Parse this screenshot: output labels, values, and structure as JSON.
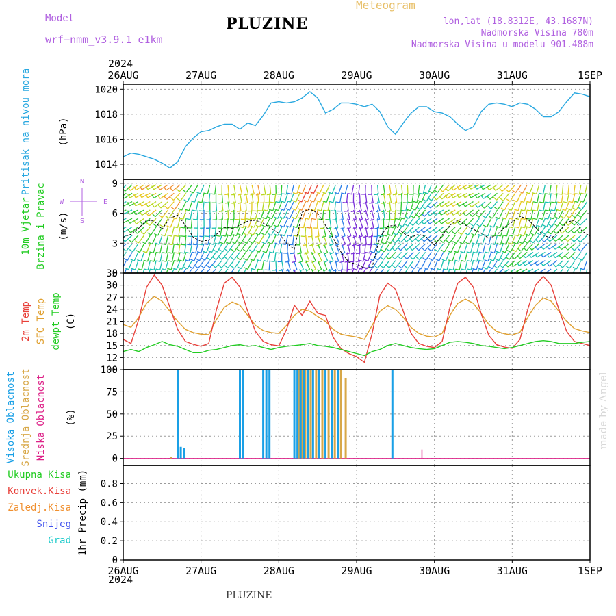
{
  "header": {
    "model_label": "Model",
    "model_name": "wrf−nmm_v3.9.1  e1km",
    "station": "PLUZINE",
    "product": "Meteogram",
    "lonlat": "lon,lat (18.8312E, 43.1687N)",
    "elevation": "Nadmorska Visina 780m",
    "model_elevation": "Nadmorska Visina u modelu 901.488m",
    "credit": "made by Angel",
    "footer": "PLUZINE",
    "year_top": "2024",
    "year_bottom": "2024"
  },
  "colors": {
    "pressure": "#29a8e0",
    "temp2m": "#e8403a",
    "sfc_temp": "#e0a030",
    "dewpt": "#22cc22",
    "high_cloud": "#1aa0e6",
    "mid_cloud": "#d8a848",
    "low_cloud": "#dd2288",
    "wind_speed": "#000000",
    "purple_text": "#b060e0",
    "gold_text": "#e8c06a"
  },
  "time_axis": {
    "labels": [
      "26AUG",
      "27AUG",
      "28AUG",
      "29AUG",
      "30AUG",
      "31AUG",
      "1SEP"
    ]
  },
  "compass": [
    "N",
    "W",
    "E",
    "S"
  ],
  "chart_data": [
    {
      "type": "line",
      "panel": "pressure",
      "ylabel_lines": [
        "Pritisak na nivou mora",
        "(hPa)"
      ],
      "ylim": [
        1012.8,
        1020.4
      ],
      "yticks": [
        1014,
        1016,
        1018,
        1020
      ],
      "x_unit": "days since 26AUG 00UTC",
      "grid": true,
      "series": [
        {
          "name": "Pritisak na nivou mora",
          "x": [
            0,
            0.1,
            0.2,
            0.3,
            0.4,
            0.5,
            0.6,
            0.7,
            0.8,
            0.9,
            1.0,
            1.1,
            1.2,
            1.3,
            1.4,
            1.5,
            1.6,
            1.7,
            1.8,
            1.9,
            2.0,
            2.1,
            2.2,
            2.3,
            2.4,
            2.5,
            2.6,
            2.7,
            2.8,
            2.9,
            3.0,
            3.1,
            3.2,
            3.3,
            3.4,
            3.5,
            3.6,
            3.7,
            3.8,
            3.9,
            4.0,
            4.1,
            4.2,
            4.3,
            4.4,
            4.5,
            4.6,
            4.7,
            4.8,
            4.9,
            5.0,
            5.1,
            5.2,
            5.3,
            5.4,
            5.5,
            5.6,
            5.7,
            5.8,
            5.9,
            6.0
          ],
          "values": [
            1014.6,
            1014.9,
            1014.8,
            1014.6,
            1014.4,
            1014.1,
            1013.7,
            1014.2,
            1015.4,
            1016.1,
            1016.6,
            1016.7,
            1017.0,
            1017.2,
            1017.2,
            1016.8,
            1017.3,
            1017.1,
            1017.9,
            1018.9,
            1019.0,
            1018.9,
            1019.0,
            1019.3,
            1019.8,
            1019.3,
            1018.1,
            1018.4,
            1018.9,
            1018.9,
            1018.8,
            1018.6,
            1018.8,
            1018.2,
            1017.0,
            1016.4,
            1017.3,
            1018.1,
            1018.6,
            1018.6,
            1018.2,
            1018.1,
            1017.8,
            1017.2,
            1016.7,
            1017.0,
            1018.2,
            1018.8,
            1018.9,
            1018.8,
            1018.6,
            1018.9,
            1018.8,
            1018.4,
            1017.8,
            1017.8,
            1018.2,
            1019.0,
            1019.7,
            1019.6,
            1019.4
          ]
        }
      ]
    },
    {
      "type": "line",
      "panel": "wind",
      "ylabel_lines": [
        "10m Vjetar",
        "Brzina i Pravac",
        "(m/s)"
      ],
      "ylim": [
        0,
        9.4
      ],
      "yticks": [
        0,
        3,
        6,
        9
      ],
      "grid": true,
      "series": [
        {
          "name": "10m wind speed",
          "x": [
            0,
            0.1,
            0.2,
            0.3,
            0.4,
            0.5,
            0.6,
            0.7,
            0.8,
            0.9,
            1.0,
            1.1,
            1.2,
            1.3,
            1.4,
            1.5,
            1.6,
            1.7,
            1.8,
            1.9,
            2.0,
            2.1,
            2.2,
            2.3,
            2.4,
            2.5,
            2.6,
            2.7,
            2.8,
            2.9,
            3.0,
            3.1,
            3.2,
            3.3,
            3.4,
            3.5,
            3.6,
            3.7,
            3.8,
            3.9,
            4.0,
            4.1,
            4.2,
            4.3,
            4.4,
            4.5,
            4.6,
            4.7,
            4.8,
            4.9,
            5.0,
            5.1,
            5.2,
            5.3,
            5.4,
            5.5,
            5.6,
            5.7,
            5.8,
            5.9,
            6.0
          ],
          "values": [
            3.6,
            3.9,
            4.5,
            5.3,
            5.2,
            4.4,
            5.5,
            5.8,
            4.8,
            3.6,
            3.2,
            3.3,
            3.9,
            4.6,
            4.5,
            4.8,
            5.2,
            5.3,
            5.0,
            4.5,
            4.0,
            3.0,
            2.4,
            6.1,
            6.4,
            6.0,
            4.8,
            3.5,
            2.1,
            1.1,
            0.9,
            0.5,
            0.6,
            3.6,
            4.7,
            4.8,
            4.0,
            3.6,
            3.9,
            3.6,
            2.8,
            3.8,
            4.8,
            5.3,
            4.8,
            4.4,
            4.0,
            3.5,
            3.8,
            4.6,
            5.1,
            5.7,
            5.4,
            4.6,
            3.8,
            3.5,
            4.1,
            5.1,
            5.3,
            4.2,
            3.7
          ]
        }
      ]
    },
    {
      "type": "line",
      "panel": "temperature",
      "ylabel_lines": [
        "2m Temp",
        "SFC Temp",
        "dewpt Temp",
        "(C)"
      ],
      "ylim": [
        9,
        33
      ],
      "yticks": [
        9,
        12,
        15,
        18,
        21,
        24,
        27,
        30,
        33
      ],
      "grid": true,
      "series": [
        {
          "name": "2m Temp",
          "x": [
            0,
            0.1,
            0.2,
            0.3,
            0.4,
            0.5,
            0.6,
            0.7,
            0.8,
            0.9,
            1.0,
            1.1,
            1.2,
            1.3,
            1.4,
            1.5,
            1.6,
            1.7,
            1.8,
            1.9,
            2.0,
            2.1,
            2.2,
            2.3,
            2.4,
            2.5,
            2.6,
            2.7,
            2.8,
            2.9,
            3.0,
            3.1,
            3.2,
            3.3,
            3.4,
            3.5,
            3.6,
            3.7,
            3.8,
            3.9,
            4.0,
            4.1,
            4.2,
            4.3,
            4.4,
            4.5,
            4.6,
            4.7,
            4.8,
            4.9,
            5.0,
            5.1,
            5.2,
            5.3,
            5.4,
            5.5,
            5.6,
            5.7,
            5.8,
            5.9,
            6.0
          ],
          "values": [
            20.2,
            19.5,
            22.0,
            25.5,
            27.2,
            26.0,
            23.5,
            21.0,
            19.0,
            18.2,
            17.8,
            17.7,
            21.5,
            24.5,
            25.8,
            25.0,
            22.5,
            20.0,
            18.7,
            18.2,
            18.0,
            20.0,
            22.5,
            24.0,
            23.5,
            22.2,
            21.0,
            19.0,
            17.8,
            17.4,
            17.1,
            16.5,
            20.0,
            23.5,
            24.9,
            24.0,
            22.0,
            19.5,
            18.0,
            17.3,
            17.1,
            18.0,
            22.5,
            25.5,
            26.5,
            25.5,
            23.0,
            20.2,
            18.5,
            17.9,
            17.6,
            18.3,
            22.0,
            25.0,
            26.8,
            26.0,
            23.5,
            21.0,
            19.2,
            18.6,
            18.2
          ]
        },
        {
          "name": "SFC Temp",
          "x": [
            0,
            0.1,
            0.2,
            0.3,
            0.4,
            0.5,
            0.6,
            0.7,
            0.8,
            0.9,
            1.0,
            1.1,
            1.2,
            1.3,
            1.4,
            1.5,
            1.6,
            1.7,
            1.8,
            1.9,
            2.0,
            2.1,
            2.2,
            2.3,
            2.4,
            2.5,
            2.6,
            2.7,
            2.8,
            2.9,
            3.0,
            3.1,
            3.2,
            3.3,
            3.4,
            3.5,
            3.6,
            3.7,
            3.8,
            3.9,
            4.0,
            4.1,
            4.2,
            4.3,
            4.4,
            4.5,
            4.6,
            4.7,
            4.8,
            4.9,
            5.0,
            5.1,
            5.2,
            5.3,
            5.4,
            5.5,
            5.6,
            5.7,
            5.8,
            5.9,
            6.0
          ],
          "values": [
            16.5,
            15.5,
            21.5,
            29.5,
            32.5,
            30.0,
            24.5,
            19.0,
            16.0,
            15.3,
            14.8,
            15.5,
            24.0,
            30.5,
            32.0,
            29.5,
            23.5,
            18.5,
            16.0,
            15.2,
            14.9,
            19.0,
            25.0,
            22.5,
            26.0,
            23.0,
            22.5,
            17.0,
            14.2,
            13.0,
            12.2,
            10.8,
            18.0,
            27.5,
            30.5,
            29.0,
            23.5,
            18.0,
            15.5,
            14.8,
            14.5,
            16.0,
            24.5,
            30.5,
            32.0,
            29.5,
            23.0,
            17.5,
            15.2,
            14.6,
            14.3,
            16.5,
            24.0,
            30.0,
            32.2,
            30.0,
            24.0,
            18.5,
            16.0,
            15.5,
            15.0
          ]
        },
        {
          "name": "dewpt Temp",
          "x": [
            0,
            0.1,
            0.2,
            0.3,
            0.4,
            0.5,
            0.6,
            0.7,
            0.8,
            0.9,
            1.0,
            1.1,
            1.2,
            1.3,
            1.4,
            1.5,
            1.6,
            1.7,
            1.8,
            1.9,
            2.0,
            2.1,
            2.2,
            2.3,
            2.4,
            2.5,
            2.6,
            2.7,
            2.8,
            2.9,
            3.0,
            3.1,
            3.2,
            3.3,
            3.4,
            3.5,
            3.6,
            3.7,
            3.8,
            3.9,
            4.0,
            4.1,
            4.2,
            4.3,
            4.4,
            4.5,
            4.6,
            4.7,
            4.8,
            4.9,
            5.0,
            5.1,
            5.2,
            5.3,
            5.4,
            5.5,
            5.6,
            5.7,
            5.8,
            5.9,
            6.0
          ],
          "values": [
            13.5,
            14.0,
            13.5,
            14.5,
            15.2,
            16.0,
            15.2,
            14.8,
            14.0,
            13.2,
            13.2,
            13.8,
            14.0,
            14.5,
            15.0,
            15.2,
            14.8,
            15.0,
            14.5,
            14.0,
            14.5,
            14.8,
            15.0,
            15.2,
            15.5,
            15.0,
            14.8,
            14.5,
            14.0,
            13.5,
            13.0,
            12.5,
            13.5,
            14.0,
            15.0,
            15.5,
            15.0,
            14.5,
            14.2,
            14.0,
            14.2,
            15.0,
            15.8,
            16.0,
            15.8,
            15.5,
            15.0,
            14.8,
            14.5,
            14.2,
            14.5,
            15.0,
            15.5,
            16.0,
            16.2,
            16.0,
            15.5,
            15.5,
            15.5,
            15.8,
            16.0
          ]
        }
      ]
    },
    {
      "type": "bar",
      "panel": "cloud_cover",
      "ylabel_lines": [
        "Visoka Oblacnost",
        "Srednja Oblacnost",
        "Niska Oblacnost",
        "(%)"
      ],
      "ylim": [
        -8,
        100
      ],
      "yticks": [
        0,
        25,
        50,
        75,
        100
      ],
      "grid": true,
      "series": [
        {
          "name": "Visoka Oblacnost",
          "x": [
            0.7,
            0.74,
            0.78,
            1.5,
            1.54,
            1.8,
            1.84,
            1.88,
            2.2,
            2.24,
            2.28,
            2.32,
            2.38,
            2.44,
            2.52,
            2.6,
            2.68,
            2.76,
            3.46
          ],
          "values": [
            100,
            13,
            12,
            100,
            100,
            100,
            100,
            100,
            100,
            100,
            100,
            100,
            100,
            100,
            100,
            100,
            100,
            100,
            100
          ]
        },
        {
          "name": "Srednja Oblacnost",
          "x": [
            0.62,
            2.26,
            2.3,
            2.34,
            2.41,
            2.48,
            2.56,
            2.64,
            2.72,
            2.8,
            2.86
          ],
          "values": [
            2,
            100,
            100,
            100,
            100,
            100,
            100,
            100,
            100,
            100,
            90
          ]
        },
        {
          "name": "Niska Oblacnost",
          "x": [
            3.84
          ],
          "values": [
            10
          ]
        }
      ]
    },
    {
      "type": "bar",
      "panel": "precipitation",
      "ylabel_lines": [
        "Ukupna Kisa",
        "Konvek.Kisa",
        "Zaledj.Kisa",
        "Snijeg",
        "Grad",
        "1hr Precip (mm)"
      ],
      "ylim": [
        0,
        0.99
      ],
      "yticks": [
        0,
        0.2,
        0.4,
        0.6,
        0.8
      ],
      "ytick_labels": [
        "0",
        "0.2",
        "0.4",
        "0.6",
        "0.8"
      ],
      "grid": true,
      "series": [
        {
          "name": "Ukupna Kisa",
          "x": [],
          "values": []
        },
        {
          "name": "Konvek.Kisa",
          "x": [],
          "values": []
        },
        {
          "name": "Zaledj.Kisa",
          "x": [],
          "values": []
        },
        {
          "name": "Snijeg",
          "x": [],
          "values": []
        },
        {
          "name": "Grad",
          "x": [],
          "values": []
        }
      ]
    }
  ],
  "wind_barbs_note": ""
}
